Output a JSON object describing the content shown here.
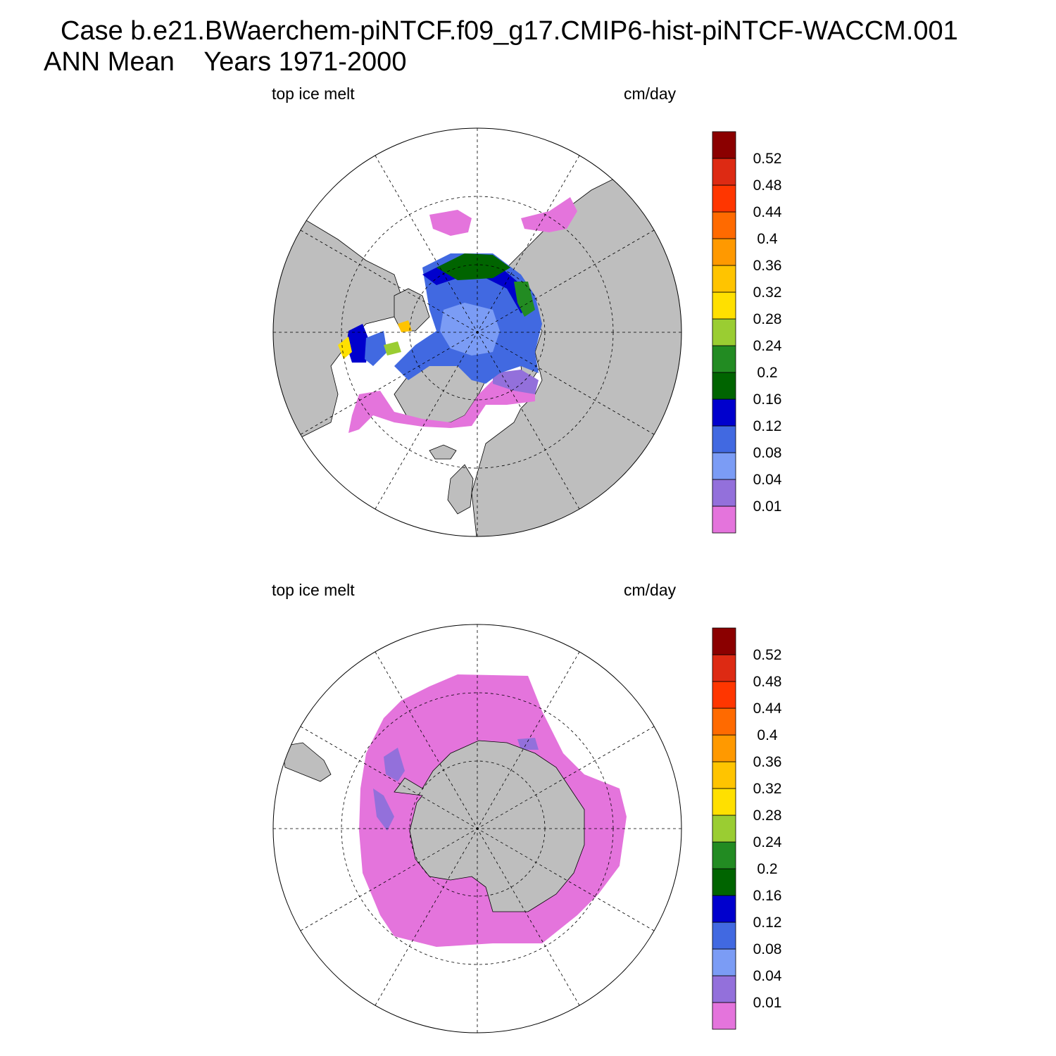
{
  "header": {
    "title_line1": "Case b.e21.BWaerchem-piNTCF.f09_g17.CMIP6-hist-piNTCF-WACCM.001",
    "title_line2": "ANN Mean    Years 1971-2000"
  },
  "colors": {
    "land": "#bebebe",
    "ocean": "#ffffff",
    "outline": "#000000"
  },
  "colorbar": {
    "fill_colors": [
      "#e474dc",
      "#9370db",
      "#7b9cf5",
      "#4169e1",
      "#0000cd",
      "#006400",
      "#228b22",
      "#9acd32",
      "#ffe000",
      "#ffc400",
      "#ff9900",
      "#ff6a00",
      "#ff3600",
      "#dd2a13",
      "#8b0000"
    ],
    "labels": [
      "0.01",
      "0.04",
      "0.08",
      "0.12",
      "0.16",
      "0.2",
      "0.24",
      "0.28",
      "0.32",
      "0.36",
      "0.4",
      "0.44",
      "0.48",
      "0.52"
    ]
  },
  "panels": [
    {
      "id": "north",
      "hemisphere": "Northern Hemisphere",
      "left_label": "top ice melt",
      "right_label": "cm/day"
    },
    {
      "id": "south",
      "hemisphere": "Southern Hemisphere",
      "left_label": "top ice melt",
      "right_label": "cm/day"
    }
  ]
}
